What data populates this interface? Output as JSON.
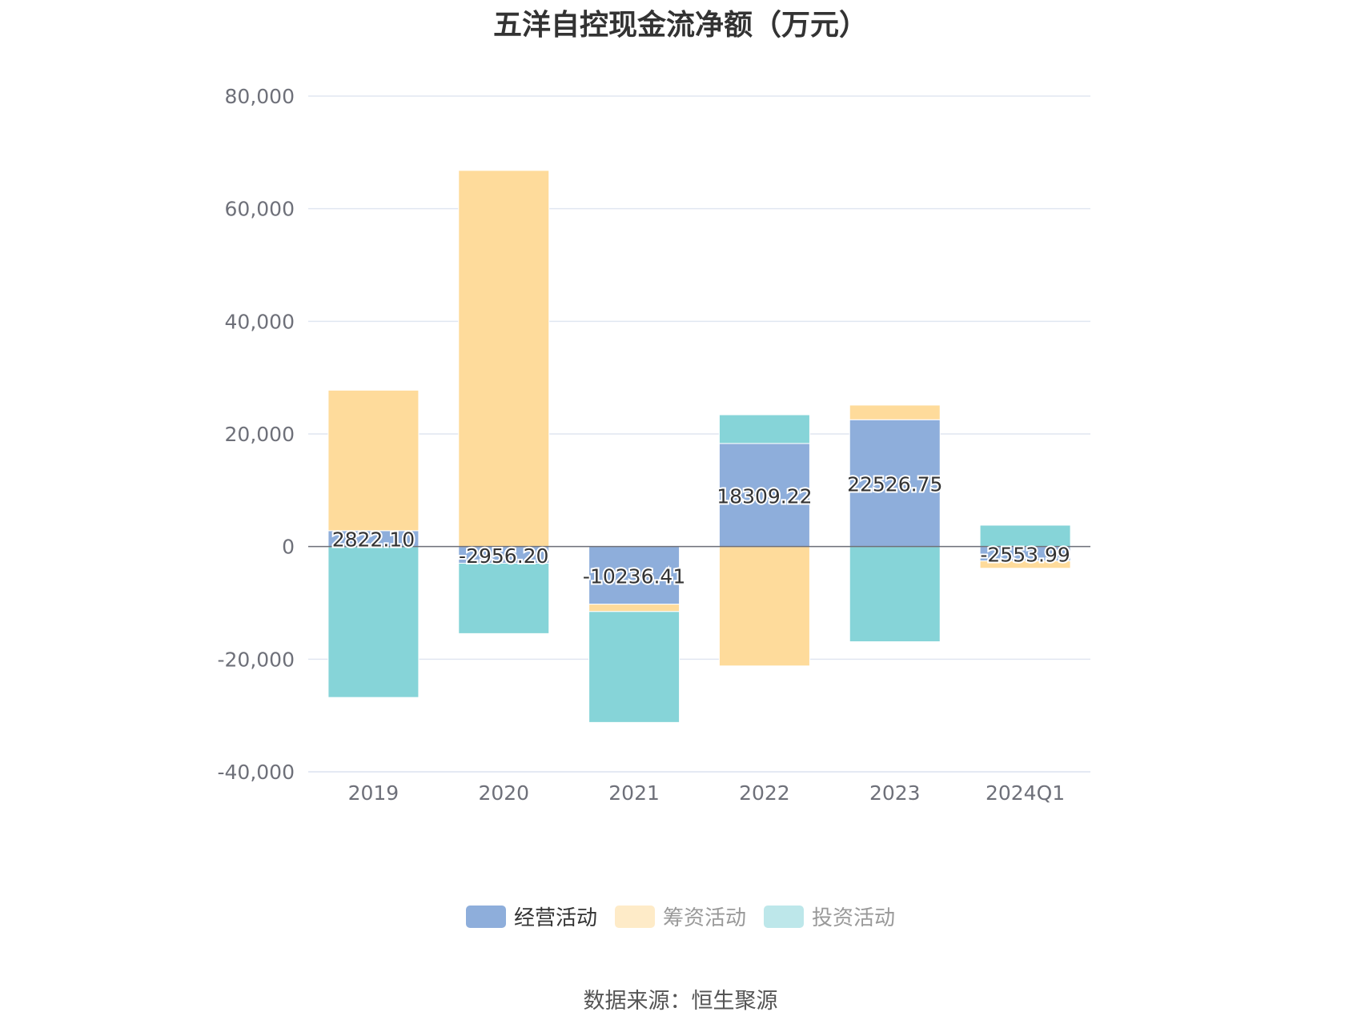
{
  "title": "五洋自控现金流净额（万元）",
  "source": "数据来源：恒生聚源",
  "legend": [
    {
      "name": "经营活动",
      "color": "#8eaedb",
      "active": true
    },
    {
      "name": "筹资活动",
      "color": "#fedb9b",
      "active": false
    },
    {
      "name": "投资活动",
      "color": "#86d4d8",
      "active": false
    }
  ],
  "chart_data": {
    "type": "bar",
    "stacked": true,
    "title": "五洋自控现金流净额（万元）",
    "categories": [
      "2019",
      "2020",
      "2021",
      "2022",
      "2023",
      "2024Q1"
    ],
    "ylim": [
      -40000,
      80000
    ],
    "yticks": [
      -40000,
      -20000,
      0,
      20000,
      40000,
      60000,
      80000
    ],
    "ytick_labels": [
      "-40,000",
      "-20,000",
      "0",
      "20,000",
      "40,000",
      "60,000",
      "80,000"
    ],
    "grid": true,
    "legend_position": "bottom",
    "series": [
      {
        "name": "经营活动",
        "color": "#8eaedb",
        "values": [
          2822.1,
          -2956.2,
          -10236.41,
          18309.22,
          22526.75,
          -2553.99
        ],
        "labels": [
          "2822.10",
          "-2956.20",
          "-10236.41",
          "18309.22",
          "22526.75",
          "-2553.99"
        ]
      },
      {
        "name": "筹资活动",
        "color": "#fedb9b",
        "values": [
          24950,
          66800,
          -1300,
          -21200,
          2600,
          -1300
        ]
      },
      {
        "name": "投资活动",
        "color": "#86d4d8",
        "values": [
          -26800,
          -12500,
          -19700,
          5100,
          -16900,
          3800
        ]
      }
    ]
  }
}
